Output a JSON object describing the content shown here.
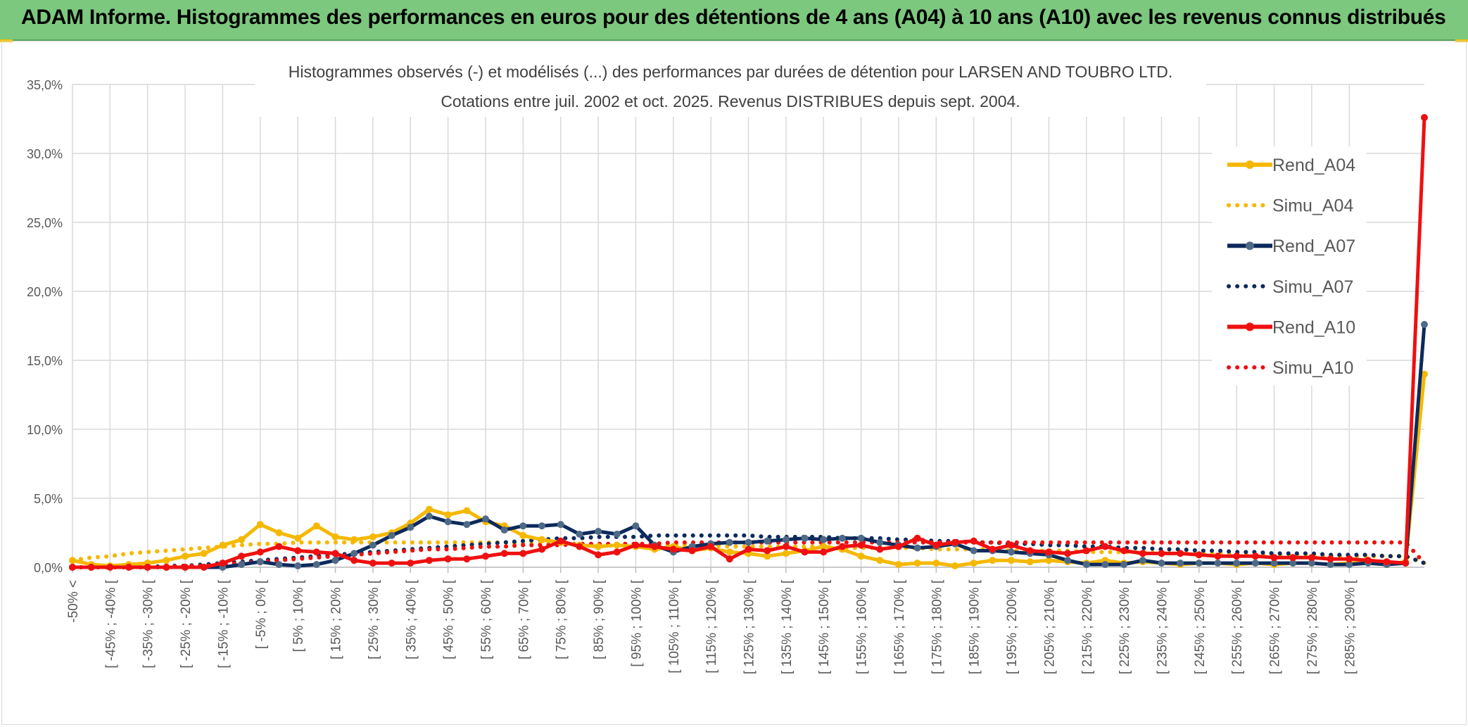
{
  "header": {
    "title": "ADAM Informe. Histogrammes des performances en euros pour des détentions de 4 ans (A04) à 10 ans (A10) avec les revenus connus distribués"
  },
  "colors": {
    "banner": "#7dc87f",
    "A04": "#f5b800",
    "A07": "#0d2a5c",
    "A10": "#ee1010",
    "grid": "#d9d9d9"
  },
  "chart_data": {
    "type": "line",
    "title_line1": "Histogrammes observés (-) et modélisés (...) des performances par durées de détention pour LARSEN AND TOUBRO LTD.",
    "title_line2": "Cotations entre juil. 2002 et oct. 2025. Revenus DISTRIBUES depuis sept. 2004.",
    "xlabel": "",
    "ylabel": "",
    "ylim": [
      0,
      35
    ],
    "y_ticks": [
      "0,0%",
      "5,0%",
      "10,0%",
      "15,0%",
      "20,0%",
      "25,0%",
      "30,0%",
      "35,0%"
    ],
    "grid": true,
    "legend_position": "right",
    "x_tick_labels": [
      "-50% <",
      "[ -45% ; -40% [",
      "[ -35% ; -30% [",
      "[ -25% ; -20% [",
      "[ -15% ; -10% [",
      "[ -5% ; 0% [",
      "[ 5% ; 10% [",
      "[ 15% ; 20% [",
      "[ 25% ; 30% [",
      "[ 35% ; 40% [",
      "[ 45% ; 50% [",
      "[ 55% ; 60% [",
      "[ 65% ; 70% [",
      "[ 75% ; 80% [",
      "[ 85% ; 90% [",
      "[ 95% ; 100% [",
      "[ 105% ; 110% [",
      "[ 115% ; 120% [",
      "[ 125% ; 130% [",
      "[ 135% ; 140% [",
      "[ 145% ; 150% [",
      "[ 155% ; 160% [",
      "[ 165% ; 170% [",
      "[ 175% ; 180% [",
      "[ 185% ; 190% [",
      "[ 195% ; 200% [",
      "[ 205% ; 210% [",
      "[ 215% ; 220% [",
      "[ 225% ; 230% [",
      "[ 235% ; 240% [",
      "[ 245% ; 250% [",
      "[ 255% ; 260% [",
      "[ 265% ; 270% [",
      "[ 275% ; 280% [",
      "[ 285% ; 290% ["
    ],
    "series": [
      {
        "name": "Rend_A04",
        "style": "solid",
        "color": "#f5b800",
        "values": [
          0.5,
          0.2,
          0.1,
          0.2,
          0.3,
          0.5,
          0.8,
          1.0,
          1.6,
          2.0,
          3.1,
          2.5,
          2.1,
          3.0,
          2.2,
          2.0,
          2.2,
          2.5,
          3.2,
          4.2,
          3.8,
          4.1,
          3.3,
          3.0,
          2.3,
          2.0,
          1.8,
          1.6,
          1.5,
          1.6,
          1.5,
          1.3,
          1.5,
          1.2,
          1.4,
          1.1,
          1.0,
          0.8,
          1.0,
          1.2,
          1.5,
          1.3,
          0.8,
          0.5,
          0.2,
          0.3,
          0.3,
          0.1,
          0.3,
          0.5,
          0.5,
          0.4,
          0.5,
          0.4,
          0.3,
          0.5,
          0.3,
          0.4,
          0.3,
          0.2,
          0.3,
          0.3,
          0.2,
          0.3,
          0.2,
          0.3,
          0.3,
          0.2,
          0.3,
          0.3,
          0.2,
          0.4,
          14.0
        ]
      },
      {
        "name": "Simu_A04",
        "style": "dotted",
        "color": "#f5b800",
        "values": [
          0.5,
          0.7,
          0.8,
          1.0,
          1.1,
          1.2,
          1.3,
          1.4,
          1.5,
          1.6,
          1.7,
          1.7,
          1.8,
          1.8,
          1.8,
          1.8,
          1.8,
          1.8,
          1.8,
          1.8,
          1.8,
          1.8,
          1.8,
          1.8,
          1.7,
          1.7,
          1.7,
          1.7,
          1.6,
          1.6,
          1.6,
          1.6,
          1.6,
          1.6,
          1.6,
          1.5,
          1.5,
          1.5,
          1.5,
          1.5,
          1.5,
          1.4,
          1.4,
          1.4,
          1.4,
          1.4,
          1.3,
          1.3,
          1.3,
          1.3,
          1.2,
          1.2,
          1.2,
          1.2,
          1.1,
          1.1,
          1.1,
          1.1,
          1.0,
          1.0,
          1.0,
          1.0,
          0.9,
          0.9,
          0.9,
          0.9,
          0.8,
          0.8,
          0.8,
          0.8,
          0.8,
          0.8,
          0.3
        ]
      },
      {
        "name": "Rend_A07",
        "style": "solid",
        "color": "#0d2a5c",
        "values": [
          0.0,
          0.0,
          0.0,
          0.0,
          0.0,
          0.0,
          0.0,
          0.0,
          0.0,
          0.2,
          0.4,
          0.2,
          0.1,
          0.2,
          0.5,
          1.0,
          1.6,
          2.3,
          2.9,
          3.7,
          3.3,
          3.1,
          3.5,
          2.7,
          3.0,
          3.0,
          3.1,
          2.4,
          2.6,
          2.4,
          3.0,
          1.6,
          1.1,
          1.5,
          1.7,
          1.8,
          1.8,
          1.9,
          2.0,
          2.1,
          2.0,
          2.1,
          2.1,
          1.8,
          1.6,
          1.4,
          1.5,
          1.7,
          1.2,
          1.2,
          1.1,
          1.0,
          0.9,
          0.5,
          0.2,
          0.2,
          0.2,
          0.5,
          0.3,
          0.3,
          0.3,
          0.3,
          0.3,
          0.3,
          0.3,
          0.3,
          0.3,
          0.2,
          0.2,
          0.3,
          0.2,
          0.3,
          17.6
        ]
      },
      {
        "name": "Simu_A07",
        "style": "dotted",
        "color": "#0d2a5c",
        "values": [
          0.0,
          0.0,
          0.0,
          0.0,
          0.0,
          0.1,
          0.1,
          0.2,
          0.3,
          0.4,
          0.5,
          0.6,
          0.7,
          0.8,
          0.9,
          1.0,
          1.1,
          1.2,
          1.3,
          1.4,
          1.5,
          1.6,
          1.7,
          1.8,
          1.9,
          2.0,
          2.1,
          2.1,
          2.2,
          2.2,
          2.2,
          2.3,
          2.3,
          2.3,
          2.3,
          2.3,
          2.3,
          2.2,
          2.2,
          2.2,
          2.2,
          2.1,
          2.1,
          2.1,
          2.0,
          2.0,
          1.9,
          1.9,
          1.8,
          1.8,
          1.7,
          1.7,
          1.6,
          1.6,
          1.5,
          1.5,
          1.4,
          1.4,
          1.3,
          1.3,
          1.2,
          1.2,
          1.1,
          1.1,
          1.0,
          1.0,
          1.0,
          0.9,
          0.9,
          0.9,
          0.8,
          0.8,
          0.3
        ]
      },
      {
        "name": "Rend_A10",
        "style": "solid",
        "color": "#ee1010",
        "values": [
          0.0,
          0.0,
          0.0,
          0.0,
          0.0,
          0.0,
          0.0,
          0.0,
          0.3,
          0.8,
          1.1,
          1.5,
          1.2,
          1.1,
          1.0,
          0.5,
          0.3,
          0.3,
          0.3,
          0.5,
          0.6,
          0.6,
          0.8,
          1.0,
          1.0,
          1.3,
          1.9,
          1.5,
          0.9,
          1.1,
          1.6,
          1.5,
          1.3,
          1.2,
          1.5,
          0.6,
          1.3,
          1.2,
          1.5,
          1.1,
          1.1,
          1.5,
          1.6,
          1.3,
          1.5,
          2.1,
          1.6,
          1.8,
          1.9,
          1.3,
          1.6,
          1.2,
          1.1,
          1.0,
          1.2,
          1.5,
          1.2,
          1.0,
          1.0,
          1.0,
          0.9,
          0.8,
          0.8,
          0.8,
          0.7,
          0.7,
          0.7,
          0.6,
          0.6,
          0.5,
          0.4,
          0.3,
          32.6
        ]
      },
      {
        "name": "Simu_A10",
        "style": "dotted",
        "color": "#ee1010",
        "values": [
          0.0,
          0.0,
          0.0,
          0.0,
          0.0,
          0.0,
          0.1,
          0.1,
          0.2,
          0.3,
          0.4,
          0.5,
          0.6,
          0.7,
          0.8,
          0.9,
          1.0,
          1.1,
          1.2,
          1.3,
          1.3,
          1.4,
          1.5,
          1.5,
          1.6,
          1.6,
          1.6,
          1.7,
          1.7,
          1.7,
          1.7,
          1.7,
          1.8,
          1.8,
          1.8,
          1.8,
          1.8,
          1.8,
          1.8,
          1.8,
          1.8,
          1.8,
          1.8,
          1.8,
          1.8,
          1.8,
          1.8,
          1.8,
          1.8,
          1.8,
          1.8,
          1.8,
          1.8,
          1.8,
          1.8,
          1.8,
          1.8,
          1.8,
          1.8,
          1.8,
          1.8,
          1.8,
          1.8,
          1.8,
          1.8,
          1.8,
          1.8,
          1.8,
          1.8,
          1.8,
          1.8,
          1.8,
          0.3
        ]
      }
    ]
  }
}
